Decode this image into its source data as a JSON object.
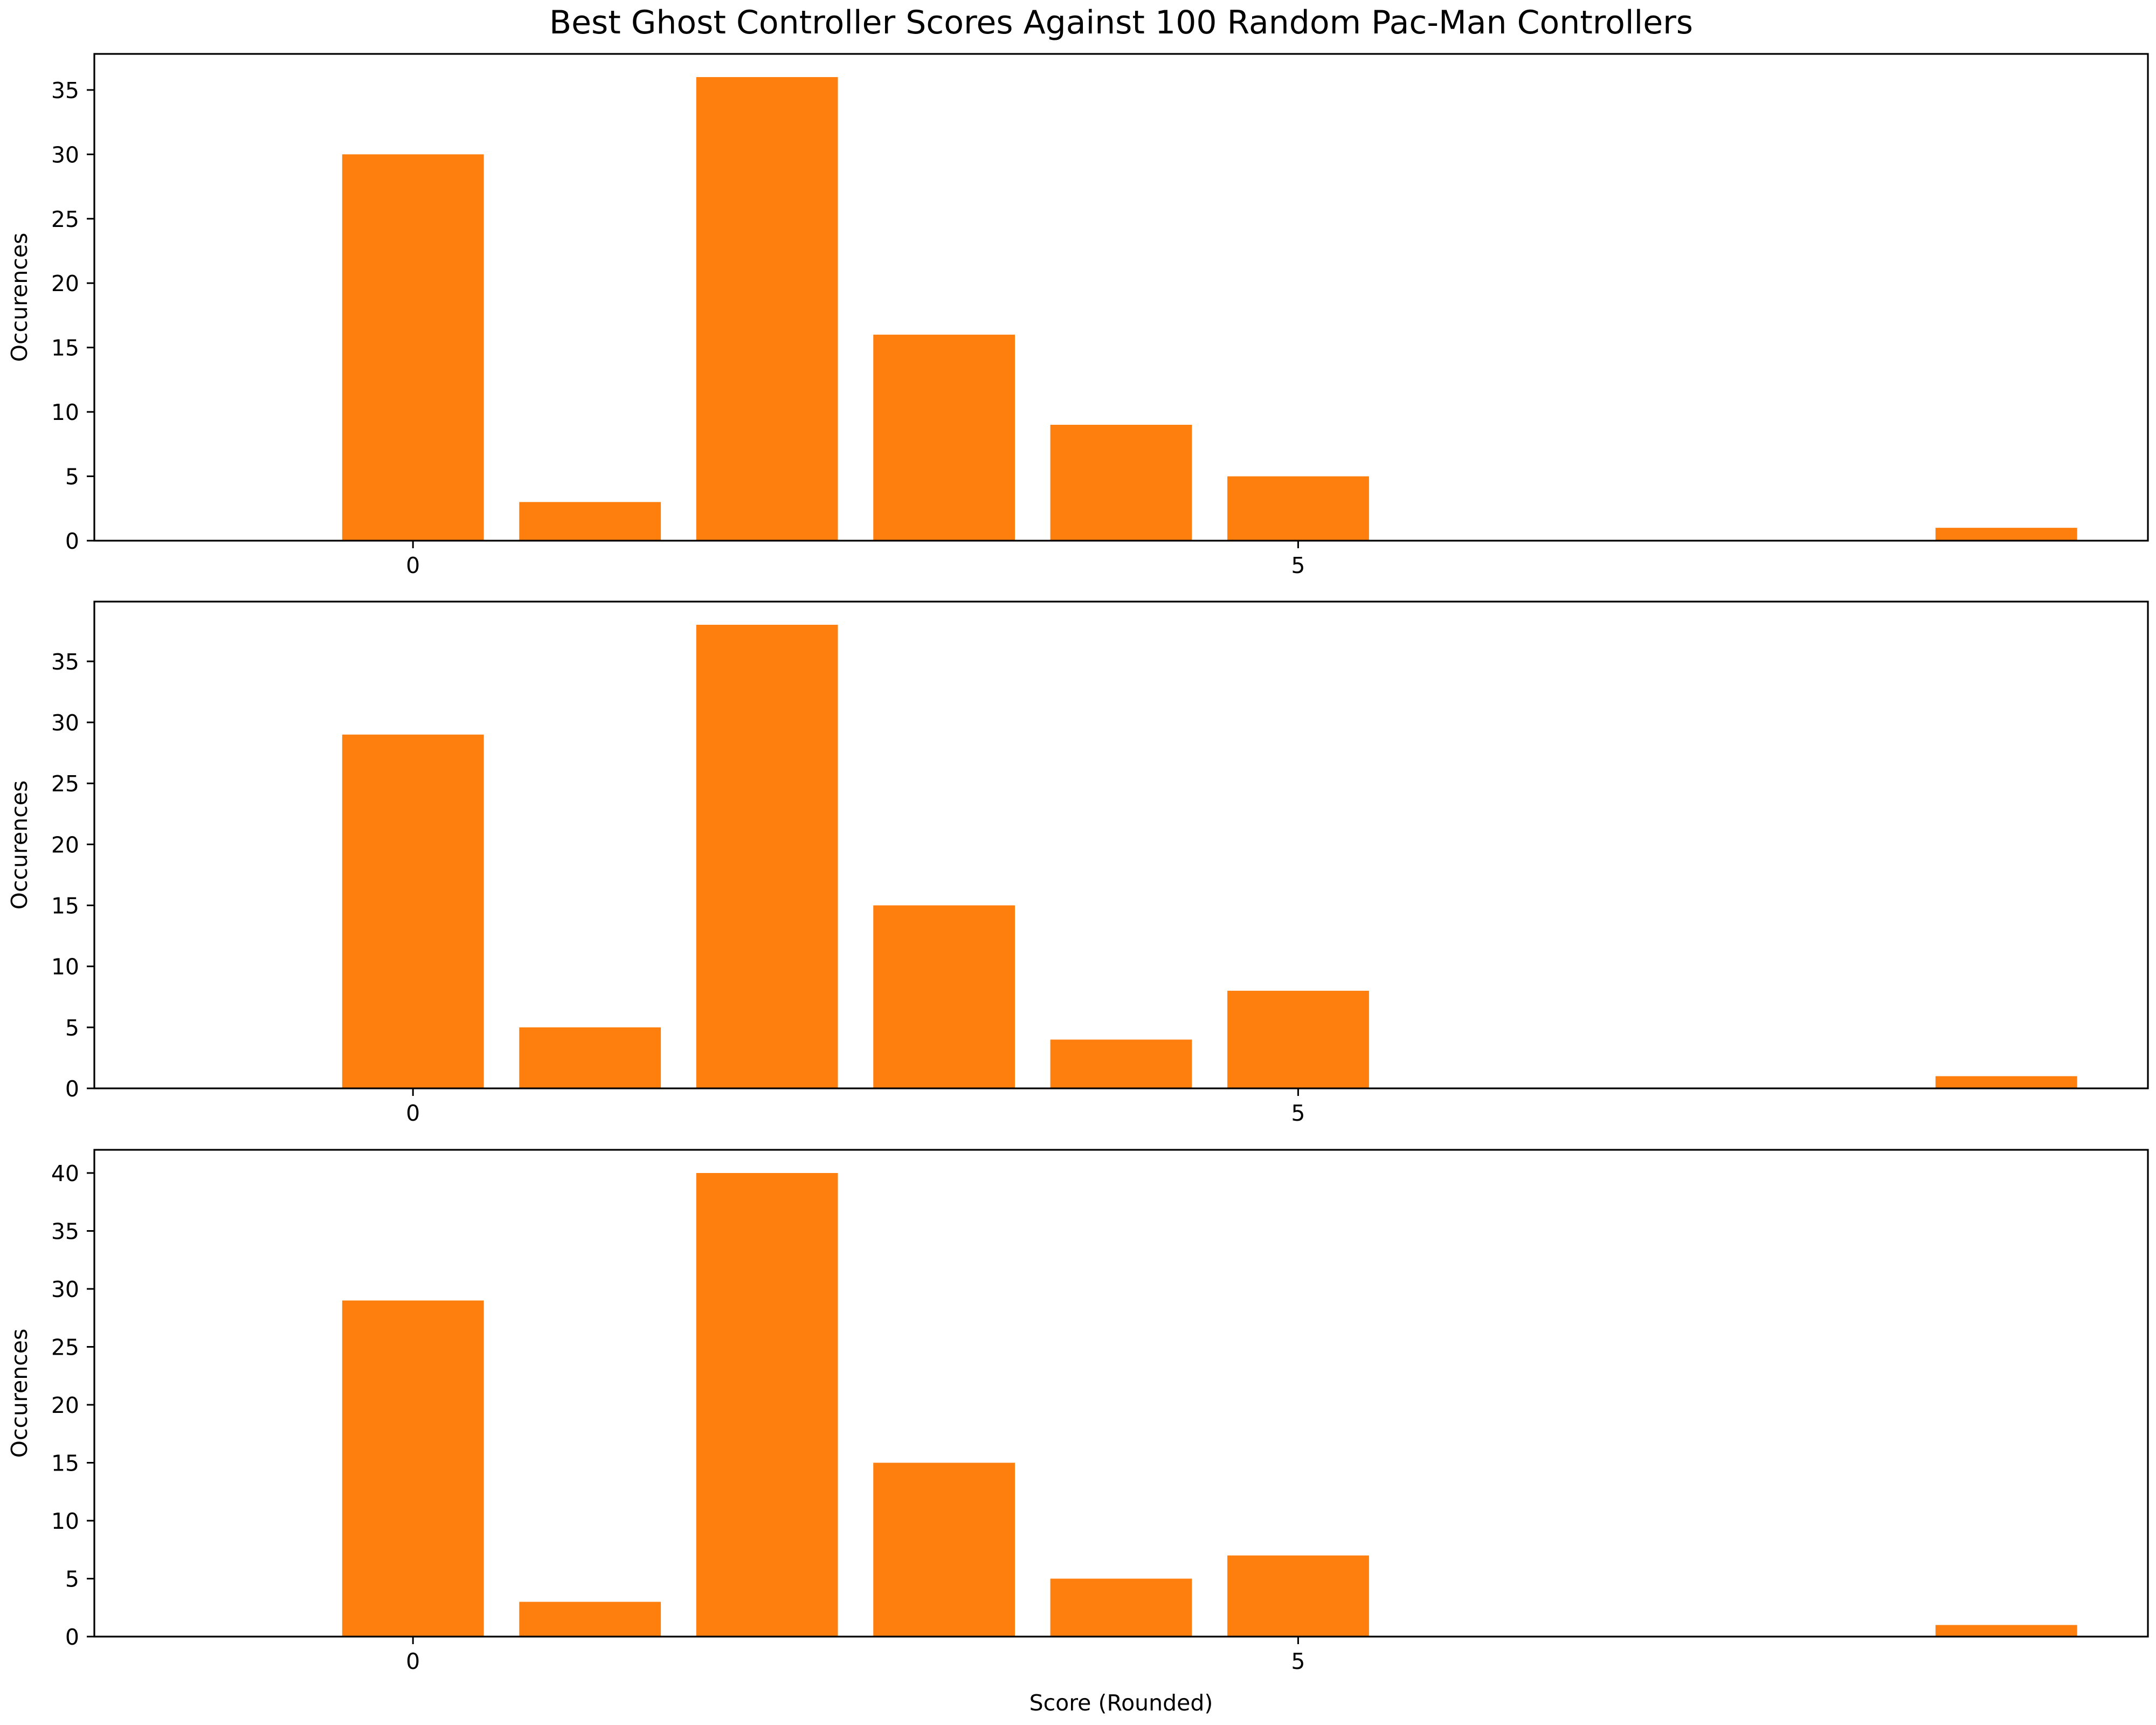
{
  "title": "Best Ghost Controller Scores Against 100 Random Pac-Man Controllers",
  "xlabel": "Score (Rounded)",
  "ylabel": "Occurences",
  "colors": {
    "bar": "#ff7f0e",
    "axis": "#000000",
    "background": "#ffffff"
  },
  "chart_data": [
    {
      "type": "bar",
      "x": [
        0,
        1,
        2,
        3,
        4,
        5,
        9
      ],
      "values": [
        30,
        3,
        36,
        16,
        9,
        5,
        1
      ],
      "xticks": [
        0,
        5
      ],
      "yticks": [
        0,
        5,
        10,
        15,
        20,
        25,
        30,
        35
      ],
      "xlim": [
        -1.8,
        9.8
      ],
      "ylim": [
        0,
        37.8
      ],
      "ylabel": "Occurences",
      "grid": false
    },
    {
      "type": "bar",
      "x": [
        0,
        1,
        2,
        3,
        4,
        5,
        9
      ],
      "values": [
        29,
        5,
        38,
        15,
        4,
        8,
        1
      ],
      "xticks": [
        0,
        5
      ],
      "yticks": [
        0,
        5,
        10,
        15,
        20,
        25,
        30,
        35
      ],
      "xlim": [
        -1.8,
        9.8
      ],
      "ylim": [
        0,
        39.9
      ],
      "ylabel": "Occurences",
      "grid": false
    },
    {
      "type": "bar",
      "x": [
        0,
        1,
        2,
        3,
        4,
        5,
        9
      ],
      "values": [
        29,
        3,
        40,
        15,
        5,
        7,
        1
      ],
      "xticks": [
        0,
        5
      ],
      "yticks": [
        0,
        5,
        10,
        15,
        20,
        25,
        30,
        35,
        40
      ],
      "xlim": [
        -1.8,
        9.8
      ],
      "ylim": [
        0,
        42
      ],
      "ylabel": "Occurences",
      "xlabel": "Score (Rounded)",
      "grid": false
    }
  ]
}
